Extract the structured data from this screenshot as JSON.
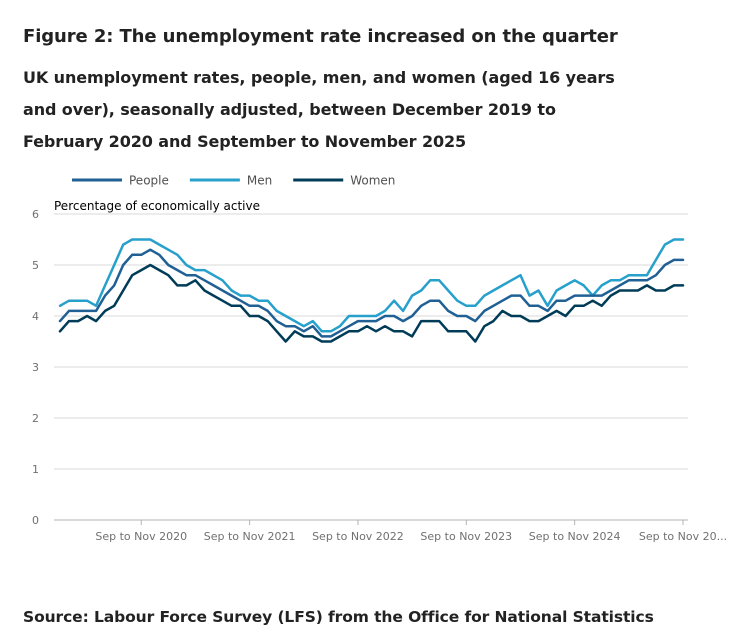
{
  "figure": {
    "title": "Figure 2: The unemployment rate increased on the quarter",
    "subtitle": "UK unemployment rates, people, men, and women (aged 16 years and over), seasonally adjusted, between December 2019 to February 2020 and September to November 2025",
    "source": "Source: Labour Force Survey (LFS) from the Office for National Statistics"
  },
  "colors": {
    "people": "#206095",
    "men": "#27a0cc",
    "women": "#003c57",
    "grid": "#d9d9d9",
    "axis": "#b3b3b3",
    "tick_text": "#707070"
  },
  "chart_data": {
    "type": "line",
    "ylabel": "Percentage of economically active",
    "ylim": [
      0,
      6
    ],
    "yticks": [
      "0",
      "1",
      "2",
      "3",
      "4",
      "5",
      "6"
    ],
    "x_range": [
      0,
      69
    ],
    "x_tick_positions": [
      9,
      21,
      33,
      45,
      57,
      69
    ],
    "x_tick_labels": [
      "Sep to Nov 2020",
      "Sep to Nov 2021",
      "Sep to Nov 2022",
      "Sep to Nov 2023",
      "Sep to Nov 2024",
      "Sep to Nov 20..."
    ],
    "grid": true,
    "legend_position": "top-left",
    "series": [
      {
        "name": "People",
        "key": "people",
        "values": [
          3.9,
          4.1,
          4.1,
          4.1,
          4.1,
          4.4,
          4.6,
          5.0,
          5.2,
          5.2,
          5.3,
          5.2,
          5.0,
          4.9,
          4.8,
          4.8,
          4.7,
          4.6,
          4.5,
          4.4,
          4.3,
          4.2,
          4.2,
          4.1,
          3.9,
          3.8,
          3.8,
          3.7,
          3.8,
          3.6,
          3.6,
          3.7,
          3.8,
          3.9,
          3.9,
          3.9,
          4.0,
          4.0,
          3.9,
          4.0,
          4.2,
          4.3,
          4.3,
          4.1,
          4.0,
          4.0,
          3.9,
          4.1,
          4.2,
          4.3,
          4.4,
          4.4,
          4.2,
          4.2,
          4.1,
          4.3,
          4.3,
          4.4,
          4.4,
          4.4,
          4.4,
          4.5,
          4.6,
          4.7,
          4.7,
          4.7,
          4.8,
          5.0,
          5.1,
          5.1
        ]
      },
      {
        "name": "Men",
        "key": "men",
        "values": [
          4.2,
          4.3,
          4.3,
          4.3,
          4.2,
          4.6,
          5.0,
          5.4,
          5.5,
          5.5,
          5.5,
          5.4,
          5.3,
          5.2,
          5.0,
          4.9,
          4.9,
          4.8,
          4.7,
          4.5,
          4.4,
          4.4,
          4.3,
          4.3,
          4.1,
          4.0,
          3.9,
          3.8,
          3.9,
          3.7,
          3.7,
          3.8,
          4.0,
          4.0,
          4.0,
          4.0,
          4.1,
          4.3,
          4.1,
          4.4,
          4.5,
          4.7,
          4.7,
          4.5,
          4.3,
          4.2,
          4.2,
          4.4,
          4.5,
          4.6,
          4.7,
          4.8,
          4.4,
          4.5,
          4.2,
          4.5,
          4.6,
          4.7,
          4.6,
          4.4,
          4.6,
          4.7,
          4.7,
          4.8,
          4.8,
          4.8,
          5.1,
          5.4,
          5.5,
          5.5
        ]
      },
      {
        "name": "Women",
        "key": "women",
        "values": [
          3.7,
          3.9,
          3.9,
          4.0,
          3.9,
          4.1,
          4.2,
          4.5,
          4.8,
          4.9,
          5.0,
          4.9,
          4.8,
          4.6,
          4.6,
          4.7,
          4.5,
          4.4,
          4.3,
          4.2,
          4.2,
          4.0,
          4.0,
          3.9,
          3.7,
          3.5,
          3.7,
          3.6,
          3.6,
          3.5,
          3.5,
          3.6,
          3.7,
          3.7,
          3.8,
          3.7,
          3.8,
          3.7,
          3.7,
          3.6,
          3.9,
          3.9,
          3.9,
          3.7,
          3.7,
          3.7,
          3.5,
          3.8,
          3.9,
          4.1,
          4.0,
          4.0,
          3.9,
          3.9,
          4.0,
          4.1,
          4.0,
          4.2,
          4.2,
          4.3,
          4.2,
          4.4,
          4.5,
          4.5,
          4.5,
          4.6,
          4.5,
          4.5,
          4.6,
          4.6
        ]
      }
    ]
  }
}
